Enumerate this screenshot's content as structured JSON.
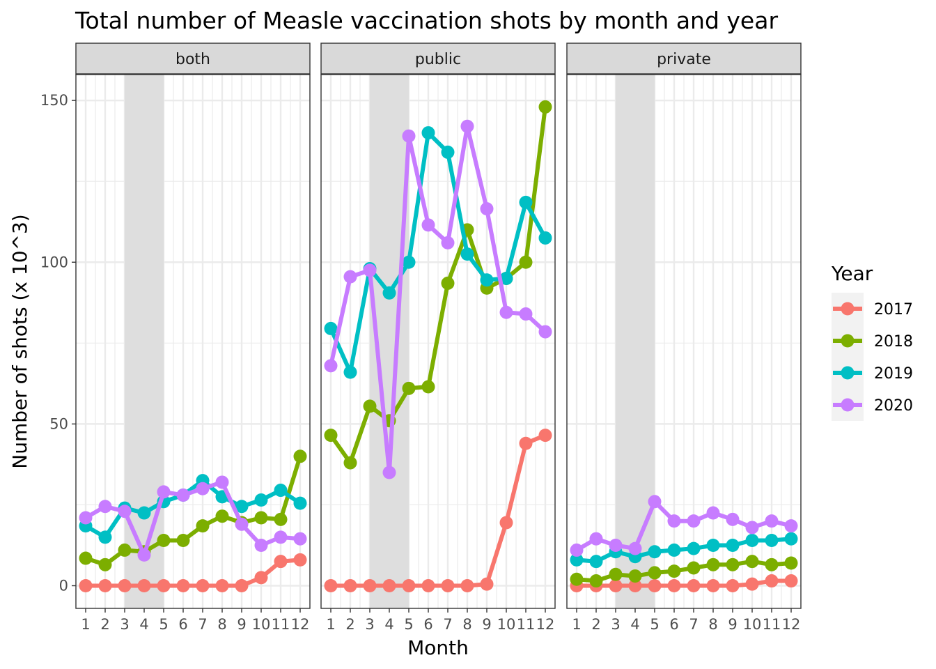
{
  "chart_data": {
    "type": "line",
    "title": "Total number of Measle vaccination shots by month and year",
    "xlabel": "Month",
    "ylabel": "Number of shots (x 10^3)",
    "x": [
      1,
      2,
      3,
      4,
      5,
      6,
      7,
      8,
      9,
      10,
      11,
      12
    ],
    "x_tick_labels": [
      "1",
      "2",
      "3",
      "4",
      "5",
      "6",
      "7",
      "8",
      "9",
      "10",
      "11",
      "12"
    ],
    "y_ticks": [
      0,
      50,
      100,
      150
    ],
    "y_tick_labels": [
      "0",
      "50",
      "100",
      "150"
    ],
    "ylim": [
      -7,
      158
    ],
    "xlim": [
      0.5,
      12.5
    ],
    "shaded_x_range": [
      3,
      5
    ],
    "grid": true,
    "legend": {
      "title": "Year",
      "placement": "right",
      "entries": [
        "2017",
        "2018",
        "2019",
        "2020"
      ]
    },
    "series_colors": {
      "2017": "#F8766D",
      "2018": "#7CAE00",
      "2019": "#00BFC4",
      "2020": "#C77CFF"
    },
    "panels": [
      {
        "label": "both",
        "series": [
          {
            "name": "2017",
            "values": [
              0,
              0,
              0,
              0,
              0,
              0,
              0,
              0,
              0,
              2.5,
              7.5,
              8
            ]
          },
          {
            "name": "2018",
            "values": [
              8.5,
              6.5,
              11,
              10.5,
              14,
              14,
              18.5,
              21.5,
              19.5,
              21,
              20.5,
              40
            ]
          },
          {
            "name": "2019",
            "values": [
              18.5,
              15,
              24,
              22.5,
              26,
              28,
              32.5,
              27.5,
              24.5,
              26.5,
              29.5,
              25.5
            ]
          },
          {
            "name": "2020",
            "values": [
              21,
              24.5,
              23,
              9.5,
              29,
              28,
              30,
              32,
              19,
              12.5,
              15,
              14.5
            ]
          }
        ]
      },
      {
        "label": "public",
        "series": [
          {
            "name": "2017",
            "values": [
              0,
              0,
              0,
              0,
              0,
              0,
              0,
              0,
              0.5,
              19.5,
              44,
              46.5
            ]
          },
          {
            "name": "2018",
            "values": [
              46.5,
              38,
              55.5,
              51,
              61,
              61.5,
              93.5,
              110,
              92,
              95,
              100,
              148
            ]
          },
          {
            "name": "2019",
            "values": [
              79.5,
              66,
              98,
              90.5,
              100,
              140,
              134,
              102.5,
              94.5,
              95,
              118.5,
              107.5
            ]
          },
          {
            "name": "2020",
            "values": [
              68,
              95.5,
              97.5,
              35,
              139,
              111.5,
              106,
              142,
              116.5,
              84.5,
              84,
              78.5
            ]
          }
        ]
      },
      {
        "label": "private",
        "series": [
          {
            "name": "2017",
            "values": [
              0,
              0,
              0,
              0,
              0,
              0,
              0,
              0,
              0,
              0.5,
              1.5,
              1.5
            ]
          },
          {
            "name": "2018",
            "values": [
              2,
              1.5,
              3.5,
              3,
              4,
              4.5,
              5.5,
              6.5,
              6.5,
              7.5,
              6.5,
              7
            ]
          },
          {
            "name": "2019",
            "values": [
              8,
              7.5,
              10.5,
              9,
              10.5,
              11,
              11.5,
              12.5,
              12.5,
              14,
              14,
              14.5
            ]
          },
          {
            "name": "2020",
            "values": [
              11,
              14.5,
              12.5,
              11.5,
              26,
              20,
              20,
              22.5,
              20.5,
              18,
              20,
              18.5
            ]
          }
        ]
      }
    ]
  }
}
